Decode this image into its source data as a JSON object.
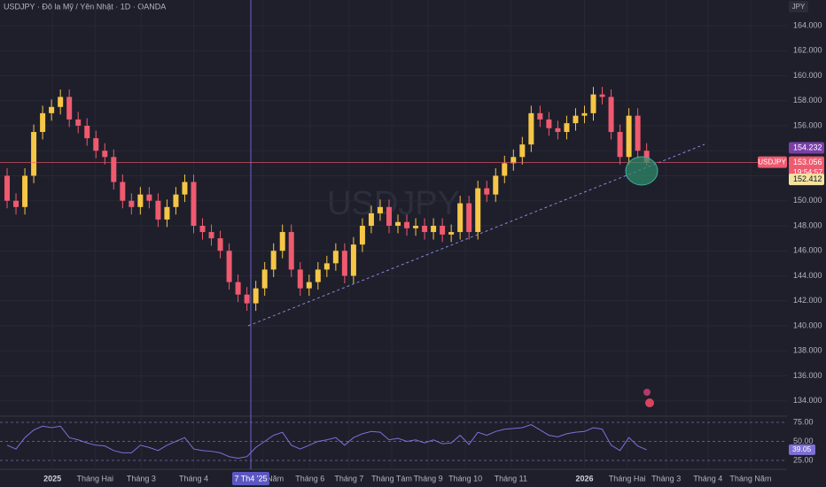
{
  "chart_data": {
    "type": "candlestick",
    "title": "USDJPY · Đô la Mỹ / Yên Nhật · 1D · OANDA",
    "watermark": "USDJPY",
    "currency": "JPY",
    "symbol": "USDJPY",
    "countdown": "19:54:57",
    "crosshair_label": "7 Th4 '25",
    "up_color": "#f6c646",
    "down_color": "#ef5a6f",
    "x": [
      1,
      2,
      3,
      4,
      5,
      6,
      7,
      8,
      9,
      10,
      11,
      12,
      13,
      14,
      15,
      16,
      17,
      18,
      19,
      20,
      21,
      22,
      23,
      24,
      25,
      26,
      27,
      28,
      29,
      30,
      31,
      32,
      33,
      34,
      35,
      36,
      37,
      38,
      39,
      40,
      41,
      42,
      43,
      44,
      45,
      46,
      47,
      48,
      49,
      50,
      51,
      52,
      53,
      54,
      55,
      56,
      57,
      58,
      59,
      60,
      61,
      62,
      63,
      64,
      65,
      66,
      67,
      68,
      69,
      70,
      71,
      72,
      73
    ],
    "open": [
      152,
      150,
      149.5,
      152,
      155.5,
      157,
      157.5,
      158.3,
      156.5,
      156,
      155,
      154,
      153.5,
      151.5,
      150,
      149.5,
      150.5,
      150,
      148.5,
      149.5,
      150.5,
      151.5,
      148,
      147.5,
      147,
      146,
      143.5,
      142.5,
      141.8,
      143,
      144.5,
      146,
      147.5,
      144.5,
      143,
      143.5,
      144.5,
      145,
      146,
      144,
      146.5,
      148,
      149,
      149.5,
      148,
      148.3,
      147.8,
      148,
      147.5,
      148,
      147.3,
      147.5,
      149.8,
      147.5,
      151,
      150.5,
      152,
      153,
      153.5,
      154.5,
      157,
      156.5,
      155.8,
      155.5,
      156.2,
      156.8,
      157,
      158.5,
      158.3,
      155.5,
      153.5,
      156.8,
      154
    ],
    "high": [
      152.6,
      150.6,
      152.6,
      156.1,
      157.6,
      158.1,
      158.9,
      158.9,
      157.1,
      156.6,
      155.6,
      154.6,
      154.1,
      152.1,
      150.6,
      151.1,
      151.1,
      150.6,
      150.1,
      151.1,
      152.1,
      152.1,
      148.6,
      148.1,
      147.6,
      146.6,
      144.1,
      143.1,
      143.6,
      145.1,
      146.6,
      148.1,
      148.1,
      145.1,
      144.1,
      145.1,
      145.6,
      146.6,
      146.6,
      147.1,
      148.6,
      149.6,
      150.1,
      150.1,
      148.9,
      148.9,
      148.6,
      148.6,
      148.6,
      148.6,
      148.1,
      150.4,
      150.4,
      151.6,
      151.6,
      152.6,
      153.6,
      154.1,
      155.1,
      157.6,
      157.6,
      157.1,
      156.4,
      156.8,
      157.4,
      157.6,
      159.1,
      159.1,
      158.9,
      156.1,
      157.4,
      157.4,
      154.6
    ],
    "low": [
      149.4,
      148.9,
      148.9,
      151.4,
      154.9,
      156.4,
      156.9,
      155.9,
      155.4,
      154.4,
      153.4,
      152.9,
      150.9,
      149.4,
      148.9,
      148.9,
      149.4,
      147.9,
      147.9,
      148.9,
      149.9,
      147.4,
      146.9,
      146.4,
      145.4,
      142.9,
      141.9,
      141.2,
      141.2,
      142.4,
      143.9,
      145.4,
      143.9,
      142.4,
      142.4,
      142.9,
      143.9,
      144.4,
      143.4,
      143.4,
      145.9,
      147.4,
      148.4,
      147.4,
      147.4,
      147.2,
      147.2,
      146.9,
      146.9,
      146.7,
      146.7,
      146.9,
      146.9,
      146.9,
      149.9,
      149.9,
      151.4,
      152.4,
      152.9,
      153.9,
      155.9,
      155.2,
      154.9,
      154.9,
      155.6,
      156.2,
      156.4,
      157.7,
      154.9,
      152.9,
      152.9,
      153.4,
      152.8
    ],
    "close": [
      150,
      149.5,
      152,
      155.5,
      157,
      157.5,
      158.3,
      156.5,
      156,
      155,
      154,
      153.5,
      151.5,
      150,
      149.5,
      150.5,
      150,
      148.5,
      149.5,
      150.5,
      151.5,
      148,
      147.5,
      147,
      146,
      143.5,
      142.5,
      141.8,
      143,
      144.5,
      146,
      147.5,
      144.5,
      143,
      143.5,
      144.5,
      145,
      146,
      144,
      146.5,
      148,
      149,
      149.5,
      148,
      148.3,
      147.8,
      148,
      147.5,
      148,
      147.3,
      147.5,
      149.8,
      147.5,
      151,
      150.5,
      152,
      153,
      153.5,
      154.5,
      157,
      156.5,
      155.8,
      155.5,
      156.2,
      156.8,
      157,
      158.5,
      158.3,
      155.5,
      153.5,
      156.8,
      154,
      153.056
    ],
    "xlim": [
      0.2,
      88.8
    ],
    "xticks": [
      {
        "value": 6.1,
        "label": "2025"
      },
      {
        "value": 10.9,
        "label": "Tháng Hai"
      },
      {
        "value": 16.1,
        "label": "Tháng 3"
      },
      {
        "value": 22.0,
        "label": "Tháng 4"
      },
      {
        "value": 29.8,
        "label": "Tháng Năm"
      },
      {
        "value": 35.1,
        "label": "Tháng 6"
      },
      {
        "value": 39.5,
        "label": "Tháng 7"
      },
      {
        "value": 44.3,
        "label": "Tháng Tám"
      },
      {
        "value": 48.4,
        "label": "Tháng 9"
      },
      {
        "value": 52.6,
        "label": "Tháng 10"
      },
      {
        "value": 57.7,
        "label": "Tháng 11"
      },
      {
        "value": 66.0,
        "label": "2026"
      },
      {
        "value": 70.8,
        "label": "Tháng Hai"
      },
      {
        "value": 75.2,
        "label": "Tháng 3"
      },
      {
        "value": 79.9,
        "label": "Tháng 4"
      },
      {
        "value": 84.7,
        "label": "Tháng Năm"
      }
    ],
    "ylim": [
      132.78,
      166.05
    ],
    "yticks": [
      {
        "value": 134,
        "label": "134.000"
      },
      {
        "value": 136,
        "label": "136.000"
      },
      {
        "value": 138,
        "label": "138.000"
      },
      {
        "value": 140,
        "label": "140.000"
      },
      {
        "value": 142,
        "label": "142.000"
      },
      {
        "value": 144,
        "label": "144.000"
      },
      {
        "value": 146,
        "label": "146.000"
      },
      {
        "value": 148,
        "label": "148.000"
      },
      {
        "value": 150,
        "label": "150.000"
      },
      {
        "value": 152,
        "label": "152.000"
      },
      {
        "value": 154,
        "label": "154.000"
      },
      {
        "value": 156,
        "label": "156.000"
      },
      {
        "value": 158,
        "label": "158.000"
      },
      {
        "value": 160,
        "label": "160.000"
      },
      {
        "value": 162,
        "label": "162.000"
      },
      {
        "value": 164,
        "label": "164.000"
      }
    ],
    "price_labels": [
      {
        "value": 154.232,
        "color": "#7b3fa8"
      },
      {
        "value": 152.412,
        "color": "#f3e3a0"
      }
    ],
    "rsi": {
      "color": "#7e6fd6",
      "ylim": [
        13.4,
        83.1
      ],
      "yticks": [
        {
          "value": 25,
          "label": "25.00"
        },
        {
          "value": 50,
          "label": "50.00"
        },
        {
          "value": 75,
          "label": "75.00"
        }
      ],
      "values": [
        45,
        40,
        55,
        65,
        70,
        68,
        70,
        55,
        52,
        48,
        45,
        44,
        38,
        35,
        35,
        45,
        42,
        38,
        45,
        50,
        55,
        40,
        38,
        37,
        35,
        30,
        28,
        30,
        42,
        50,
        58,
        62,
        45,
        40,
        45,
        50,
        52,
        55,
        45,
        55,
        60,
        63,
        62,
        52,
        54,
        50,
        52,
        48,
        52,
        47,
        48,
        58,
        46,
        62,
        58,
        63,
        66,
        67,
        68,
        72,
        65,
        58,
        56,
        60,
        62,
        63,
        68,
        66,
        45,
        38,
        55,
        44,
        39.05
      ]
    }
  }
}
